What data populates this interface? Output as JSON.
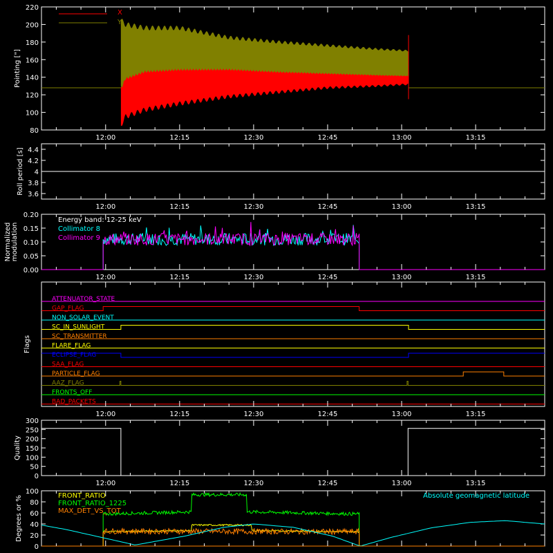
{
  "x_axis": {
    "tick_labels": [
      "12:00",
      "12:15",
      "12:30",
      "12:45",
      "13:00",
      "13:15"
    ],
    "tick_minutes": [
      720,
      735,
      750,
      765,
      780,
      795
    ],
    "range_minutes": [
      707,
      809
    ]
  },
  "colors": {
    "background": "#000000",
    "axes": "#ffffff",
    "red": "#ff0000",
    "olive": "#808000",
    "cyan": "#00ffff",
    "magenta": "#ff00ff",
    "white": "#ffffff",
    "green": "#00ff00",
    "orange": "#ff8000",
    "yellow": "#ffff00",
    "blue": "#0000ff"
  },
  "chart_data": [
    {
      "type": "line",
      "name": "pointing",
      "ylabel": "Pointing [\"]",
      "ylim": [
        80,
        220
      ],
      "yticks": [
        80,
        100,
        120,
        140,
        160,
        180,
        200,
        220
      ],
      "legend": [
        {
          "label": "X",
          "color": "#ff0000"
        },
        {
          "label": "Y",
          "color": "#808000"
        }
      ],
      "envelopes": [
        {
          "series": "Y",
          "x": [
            723.1,
            724,
            728,
            735,
            745,
            755,
            765,
            775,
            781.4
          ],
          "upper": [
            205,
            200,
            196,
            196,
            185,
            180,
            176,
            172,
            170
          ],
          "lower": [
            130,
            131,
            133,
            133,
            134,
            134,
            134,
            134,
            134
          ]
        },
        {
          "series": "X",
          "x": [
            723.1,
            724,
            728,
            735,
            745,
            755,
            765,
            775,
            781.4
          ],
          "upper": [
            128,
            140,
            148,
            150,
            150,
            147,
            145,
            143,
            142
          ],
          "lower": [
            85,
            95,
            103,
            110,
            118,
            123,
            128,
            130,
            132
          ]
        }
      ],
      "baseline": 128
    },
    {
      "type": "line",
      "name": "roll-period",
      "ylabel": "Roll period [s]",
      "ylim": [
        3.5,
        4.5
      ],
      "yticks": [
        3.6,
        3.8,
        4.0,
        4.2,
        4.4
      ],
      "series": [
        {
          "color": "#ffffff",
          "x": [
            707,
            809
          ],
          "y": [
            4.0,
            4.0
          ]
        }
      ]
    },
    {
      "type": "line",
      "name": "modulation",
      "ylabel": [
        "Normalized",
        "modulation"
      ],
      "ylim": [
        0,
        0.2
      ],
      "yticks": [
        0.0,
        0.05,
        0.1,
        0.15,
        0.2
      ],
      "tick_labels_y": [
        "0.00",
        "0.05",
        "0.10",
        "0.15",
        "0.20"
      ],
      "annotation": "Energy band: 12-25 keV",
      "legend": [
        {
          "label": "Collimator 8",
          "color": "#00ffff"
        },
        {
          "label": "Collimator 9",
          "color": "#ff00ff"
        }
      ],
      "active_range": [
        719.5,
        771.4
      ],
      "mean": 0.11
    },
    {
      "type": "line",
      "name": "flags",
      "ylabel": "Flags",
      "flags": [
        {
          "label": "ATTENUATOR_STATE",
          "color": "#ff00ff",
          "steps": []
        },
        {
          "label": "GAP_FLAG",
          "color": "#ff0000",
          "steps": [
            [
              707,
              0
            ],
            [
              719.5,
              1
            ],
            [
              771.4,
              0
            ]
          ]
        },
        {
          "label": "NON_SOLAR_EVENT",
          "color": "#00ffff",
          "steps": []
        },
        {
          "label": "SC_IN_SUNLIGHT",
          "color": "#ffff00",
          "steps": [
            [
              707,
              0
            ],
            [
              723.1,
              1
            ],
            [
              781.4,
              0
            ]
          ]
        },
        {
          "label": "SC_TRANSMITTER",
          "color": "#ff8000",
          "steps": []
        },
        {
          "label": "FLARE_FLAG",
          "color": "#ffff00",
          "steps": []
        },
        {
          "label": "ECLIPSE_FLAG",
          "color": "#0000ff",
          "steps": [
            [
              707,
              1
            ],
            [
              723.1,
              0
            ],
            [
              781.4,
              1
            ]
          ]
        },
        {
          "label": "SAA_FLAG",
          "color": "#ff0000",
          "steps": []
        },
        {
          "label": "PARTICLE_FLAG",
          "color": "#ff8000",
          "steps": [
            [
              707,
              0
            ],
            [
              792.5,
              1
            ],
            [
              800.7,
              0
            ]
          ]
        },
        {
          "label": "AAZ_FLAG",
          "color": "#808000",
          "steps": [
            [
              707,
              0
            ],
            [
              722.9,
              1
            ],
            [
              723.1,
              0
            ],
            [
              781.1,
              1
            ],
            [
              781.3,
              0
            ]
          ]
        },
        {
          "label": "FRONTS_OFF",
          "color": "#00ff00",
          "steps": []
        },
        {
          "label": "BAD_PACKETS",
          "color": "#ff0000",
          "steps": []
        }
      ]
    },
    {
      "type": "line",
      "name": "quality",
      "ylabel": "Quality",
      "ylim": [
        0,
        300
      ],
      "yticks": [
        0,
        50,
        100,
        150,
        200,
        250,
        300
      ],
      "series": [
        {
          "color": "#ffffff",
          "x": [
            707,
            723.1,
            723.1,
            781.3,
            781.3,
            809
          ],
          "y": [
            256,
            256,
            0,
            0,
            256,
            256
          ]
        }
      ]
    },
    {
      "type": "line",
      "name": "front-ratio",
      "ylabel": "Degrees or %",
      "ylim": [
        0,
        100
      ],
      "yticks": [
        0,
        20,
        40,
        60,
        80,
        100
      ],
      "legend": [
        {
          "label": "FRONT_RATIO",
          "color": "#ffff00"
        },
        {
          "label": "FRONT_RATIO_1225",
          "color": "#00ff00"
        },
        {
          "label": "MAX_DET_VS_TOT",
          "color": "#ff8000"
        }
      ],
      "legend_right": {
        "label": "Absolute geomagnetic latitude",
        "color": "#00ffff"
      },
      "series": [
        {
          "name": "FRONT_RATIO_1225",
          "color": "#00ff00",
          "x": [
            719.5,
            737.4,
            737.4,
            748.6,
            748.6,
            771.4
          ],
          "y": [
            58,
            62,
            93,
            93,
            62,
            58
          ],
          "noise": 3
        },
        {
          "name": "FRONT_RATIO",
          "color": "#ffff00",
          "x": [
            719.5,
            737.4,
            737.4,
            749.6,
            749.6,
            771.4
          ],
          "y": [
            26,
            28,
            38,
            38,
            28,
            26
          ],
          "noise": 1.5
        },
        {
          "name": "MAX_DET_VS_TOT",
          "color": "#ff8000",
          "x": [
            719.5,
            771.4
          ],
          "y": [
            27,
            26
          ],
          "noise": 5
        },
        {
          "name": "Absolute geomagnetic latitude",
          "color": "#00ffff",
          "x": [
            707,
            712,
            718,
            726,
            736,
            744,
            750,
            758,
            766,
            771.6,
            778,
            786,
            794,
            801,
            809
          ],
          "y": [
            38,
            30,
            18,
            2,
            18,
            34,
            40,
            34,
            18,
            0,
            16,
            33,
            43,
            46,
            40
          ]
        }
      ]
    }
  ]
}
